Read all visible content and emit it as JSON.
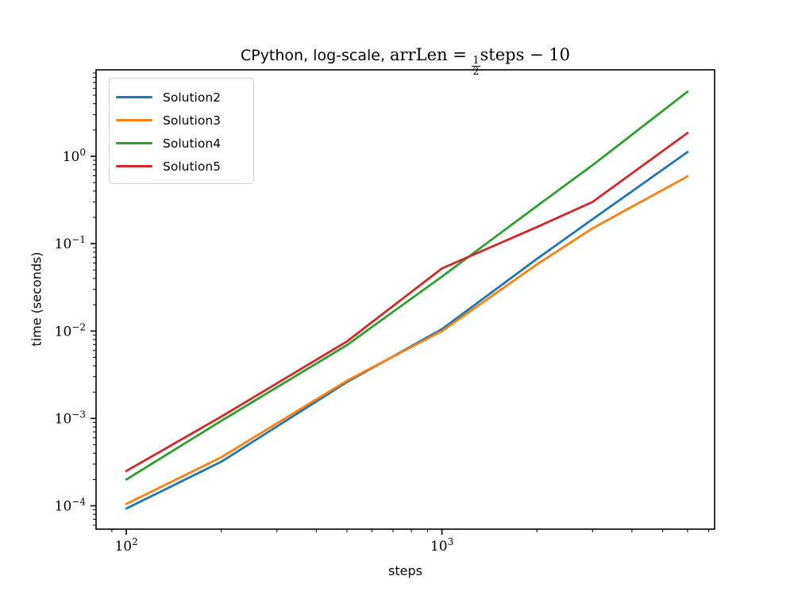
{
  "chart_data": {
    "type": "line",
    "title": "CPython, log-scale, arrLen = 1/2 steps - 10",
    "title_plain": "CPython, log-scale, ",
    "title_math_pre": "arrLen = ",
    "title_frac_num": "1",
    "title_frac_den": "2",
    "title_math_post": "steps − 10",
    "xlabel": "steps",
    "ylabel": "time (seconds)",
    "x_scale": "log",
    "y_scale": "log",
    "xlim": [
      80.2,
      7310
    ],
    "ylim": [
      5.4e-05,
      9.77
    ],
    "grid": false,
    "legend_position": "upper left",
    "x": [
      100,
      200,
      500,
      1000,
      2000,
      3000,
      6000
    ],
    "series": [
      {
        "name": "Solution2",
        "color": "#1f77b4",
        "values": [
          9.3e-05,
          0.00032,
          0.0026,
          0.0105,
          0.067,
          0.19,
          1.12
        ]
      },
      {
        "name": "Solution3",
        "color": "#ff7f0e",
        "values": [
          0.000105,
          0.00036,
          0.0027,
          0.01,
          0.058,
          0.15,
          0.59
        ]
      },
      {
        "name": "Solution4",
        "color": "#2ca02c",
        "values": [
          0.0002,
          0.00094,
          0.0069,
          0.042,
          0.27,
          0.79,
          5.5
        ]
      },
      {
        "name": "Solution5",
        "color": "#d62728",
        "values": [
          0.00025,
          0.00105,
          0.0076,
          0.052,
          0.155,
          0.3,
          1.85
        ]
      }
    ],
    "x_major_ticks": [
      {
        "value": 100,
        "base": "10",
        "exp": "2"
      },
      {
        "value": 1000,
        "base": "10",
        "exp": "3"
      }
    ],
    "y_major_ticks": [
      {
        "value": 1,
        "base": "10",
        "exp": "0"
      },
      {
        "value": 0.1,
        "base": "10",
        "exp": "−1"
      },
      {
        "value": 0.01,
        "base": "10",
        "exp": "−2"
      },
      {
        "value": 0.001,
        "base": "10",
        "exp": "−3"
      },
      {
        "value": 0.0001,
        "base": "10",
        "exp": "−4"
      }
    ]
  }
}
